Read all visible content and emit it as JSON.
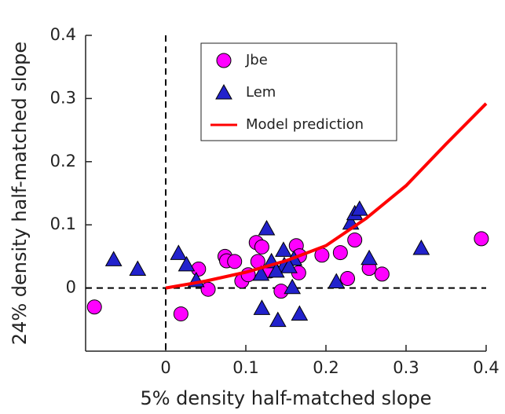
{
  "chart_data": {
    "type": "scatter",
    "xlabel": "5% density half-matched slope",
    "ylabel": "24% density half-matched slope",
    "xlim": [
      -0.1,
      0.4
    ],
    "ylim": [
      -0.1,
      0.4
    ],
    "xticks": [
      0,
      0.1,
      0.2,
      0.3,
      0.4
    ],
    "yticks": [
      0,
      0.1,
      0.2,
      0.3,
      0.4
    ],
    "vlines": [
      0
    ],
    "hlines": [
      0
    ],
    "legend": "upper center",
    "series": [
      {
        "name": "Jbe",
        "type": "scatter",
        "marker": "circle",
        "color": "#ff00ff",
        "x": [
          -0.089,
          0.019,
          0.041,
          0.053,
          0.074,
          0.076,
          0.086,
          0.095,
          0.103,
          0.113,
          0.115,
          0.12,
          0.13,
          0.144,
          0.163,
          0.166,
          0.167,
          0.195,
          0.218,
          0.227,
          0.236,
          0.254,
          0.27,
          0.394
        ],
        "values": [
          -0.03,
          -0.041,
          0.03,
          -0.002,
          0.05,
          0.043,
          0.042,
          0.011,
          0.021,
          0.072,
          0.042,
          0.065,
          0.027,
          -0.005,
          0.067,
          0.024,
          0.051,
          0.052,
          0.056,
          0.015,
          0.076,
          0.031,
          0.022,
          0.078
        ]
      },
      {
        "name": "Lem",
        "type": "scatter",
        "marker": "triangle",
        "color": "#2222cc",
        "x": [
          -0.065,
          -0.035,
          0.016,
          0.026,
          0.038,
          0.12,
          0.126,
          0.119,
          0.132,
          0.14,
          0.147,
          0.148,
          0.158,
          0.16,
          0.167,
          0.213,
          0.231,
          0.236,
          0.242,
          0.254,
          0.319,
          0.138,
          0.154
        ],
        "values": [
          0.045,
          0.03,
          0.055,
          0.037,
          0.012,
          -0.032,
          0.094,
          0.022,
          0.042,
          -0.051,
          0.06,
          0.036,
          0.001,
          0.046,
          -0.041,
          0.01,
          0.103,
          0.118,
          0.125,
          0.047,
          0.063,
          0.027,
          0.034
        ]
      },
      {
        "name": "Model prediction",
        "type": "line",
        "color": "#ff0000",
        "x": [
          0,
          0.05,
          0.1,
          0.15,
          0.2,
          0.25,
          0.3,
          0.35,
          0.4
        ],
        "values": [
          0,
          0.011,
          0.025,
          0.043,
          0.067,
          0.11,
          0.162,
          0.228,
          0.292
        ]
      }
    ]
  }
}
